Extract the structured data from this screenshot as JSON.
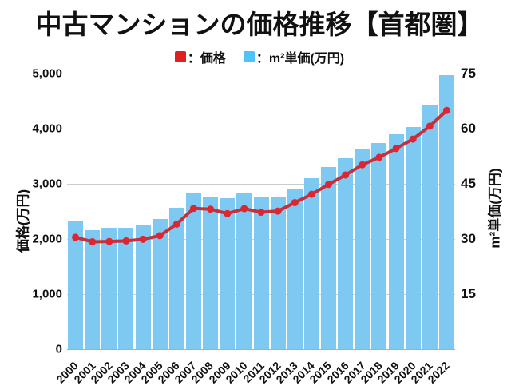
{
  "title": "中古マンションの価格推移【首都圏】",
  "legend": {
    "price_label": "：価格",
    "unit_label": "：m²単価(万円)"
  },
  "axes": {
    "left_title": "価格(万円)",
    "right_title": "m²単価(万円)"
  },
  "colors": {
    "bar": "#7ec9f2",
    "legend_bar": "#4fc3f7",
    "line": "#c4303c",
    "dot": "#e02530",
    "legend_price": "#e02020",
    "grid": "#cccccc",
    "text": "#111111"
  },
  "chart_data": {
    "type": "bar+line",
    "title": "中古マンションの価格推移【首都圏】",
    "categories": [
      2000,
      2001,
      2002,
      2003,
      2004,
      2005,
      2006,
      2007,
      2008,
      2009,
      2010,
      2011,
      2012,
      2013,
      2014,
      2015,
      2016,
      2017,
      2018,
      2019,
      2020,
      2021,
      2022
    ],
    "series": [
      {
        "name": "価格",
        "type": "line",
        "axis": "left",
        "color": "#c4303c",
        "values": [
          2030,
          1950,
          1955,
          1965,
          1995,
          2060,
          2270,
          2555,
          2540,
          2460,
          2550,
          2485,
          2505,
          2660,
          2810,
          2990,
          3160,
          3345,
          3480,
          3640,
          3810,
          4045,
          4330
        ]
      },
      {
        "name": "m²単価(万円)",
        "type": "bar",
        "axis": "right",
        "color": "#7ec9f2",
        "values": [
          35,
          32.5,
          33,
          33,
          34,
          35.5,
          38.5,
          42.5,
          41.5,
          41,
          42.5,
          41.5,
          41.5,
          43.5,
          46.5,
          49.5,
          52,
          54.5,
          56,
          58.5,
          60.5,
          66.5,
          74.5
        ]
      }
    ],
    "left_axis": {
      "label": "価格(万円)",
      "range": [
        0,
        5000
      ],
      "ticks": [
        0,
        1000,
        2000,
        3000,
        4000,
        5000
      ]
    },
    "right_axis": {
      "label": "m²単価(万円)",
      "range": [
        0,
        75
      ],
      "ticks": [
        15,
        30,
        45,
        60,
        75
      ]
    },
    "grid": true,
    "legend_position": "top"
  }
}
